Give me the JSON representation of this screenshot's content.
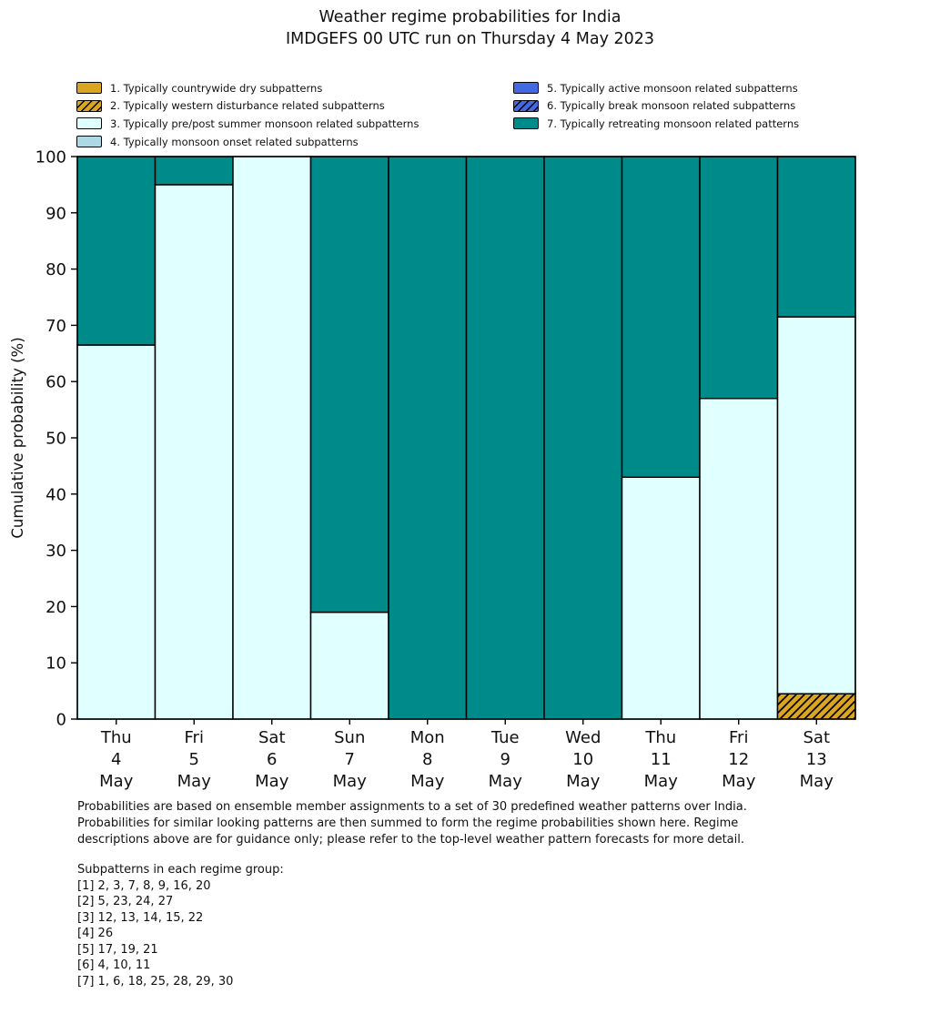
{
  "title": {
    "line1": "Weather regime probabilities for India",
    "line2": "IMDGEFS 00 UTC run on Thursday 4 May 2023"
  },
  "legend": {
    "items": [
      {
        "label": "1. Typically countrywide dry subpatterns",
        "color": "#daa520",
        "hatch": false,
        "column": 0
      },
      {
        "label": "2. Typically western disturbance related subpatterns",
        "color": "#daa520",
        "hatch": true,
        "column": 0
      },
      {
        "label": "3. Typically pre/post summer monsoon related subpatterns",
        "color": "#e0ffff",
        "hatch": false,
        "column": 0
      },
      {
        "label": "4. Typically monsoon onset related subpatterns",
        "color": "#add8e6",
        "hatch": false,
        "column": 0
      },
      {
        "label": "5. Typically active monsoon related subpatterns",
        "color": "#4169e1",
        "hatch": false,
        "column": 1
      },
      {
        "label": "6. Typically break monsoon related subpatterns",
        "color": "#4169e1",
        "hatch": true,
        "column": 1
      },
      {
        "label": "7. Typically retreating monsoon related patterns",
        "color": "#008b8b",
        "hatch": false,
        "column": 1
      }
    ]
  },
  "chart_data": {
    "type": "bar",
    "stacked": true,
    "title": "Weather regime probabilities for India",
    "xlabel": "",
    "ylabel": "Cumulative probability (%)",
    "ylim": [
      0,
      100
    ],
    "ytick_step": 10,
    "grid": false,
    "legend_position": "upper area, two columns",
    "categories": [
      {
        "day": "Thu",
        "date": "4",
        "month": "May"
      },
      {
        "day": "Fri",
        "date": "5",
        "month": "May"
      },
      {
        "day": "Sat",
        "date": "6",
        "month": "May"
      },
      {
        "day": "Sun",
        "date": "7",
        "month": "May"
      },
      {
        "day": "Mon",
        "date": "8",
        "month": "May"
      },
      {
        "day": "Tue",
        "date": "9",
        "month": "May"
      },
      {
        "day": "Wed",
        "date": "10",
        "month": "May"
      },
      {
        "day": "Thu",
        "date": "11",
        "month": "May"
      },
      {
        "day": "Fri",
        "date": "12",
        "month": "May"
      },
      {
        "day": "Sat",
        "date": "13",
        "month": "May"
      }
    ],
    "series": [
      {
        "name": "1. Typically countrywide dry subpatterns",
        "color": "#daa520",
        "hatch": false,
        "values": [
          0,
          0,
          0,
          0,
          0,
          0,
          0,
          0,
          0,
          0
        ]
      },
      {
        "name": "2. Typically western disturbance related subpatterns",
        "color": "#daa520",
        "hatch": true,
        "values": [
          0,
          0,
          0,
          0,
          0,
          0,
          0,
          0,
          0,
          4.5
        ]
      },
      {
        "name": "3. Typically pre/post summer monsoon related subpatterns",
        "color": "#e0ffff",
        "hatch": false,
        "values": [
          66.5,
          95,
          100,
          19,
          0,
          0,
          0,
          43,
          57,
          67
        ]
      },
      {
        "name": "4. Typically monsoon onset related subpatterns",
        "color": "#add8e6",
        "hatch": false,
        "values": [
          0,
          0,
          0,
          0,
          0,
          0,
          0,
          0,
          0,
          0
        ]
      },
      {
        "name": "5. Typically active monsoon related subpatterns",
        "color": "#4169e1",
        "hatch": false,
        "values": [
          0,
          0,
          0,
          0,
          0,
          0,
          0,
          0,
          0,
          0
        ]
      },
      {
        "name": "6. Typically break monsoon related subpatterns",
        "color": "#4169e1",
        "hatch": true,
        "values": [
          0,
          0,
          0,
          0,
          0,
          0,
          0,
          0,
          0,
          0
        ]
      },
      {
        "name": "7. Typically retreating monsoon related patterns",
        "color": "#008b8b",
        "hatch": false,
        "values": [
          33.5,
          5,
          0,
          81,
          100,
          100,
          100,
          57,
          43,
          28.5
        ]
      }
    ]
  },
  "footer": {
    "paragraph": "Probabilities are based on ensemble member assignments to a set of 30 predefined weather patterns over India.\nProbabilities for similar looking patterns are then summed to form the regime probabilities shown here. Regime\ndescriptions above are for guidance only; please refer to the top-level weather pattern forecasts for more detail.",
    "subpatterns": "Subpatterns in each regime group:\n[1] 2, 3, 7, 8, 9, 16, 20\n[2] 5, 23, 24, 27\n[3] 12, 13, 14, 15, 22\n[4] 26\n[5] 17, 19, 21\n[6] 4, 10, 11\n[7] 1, 6, 18, 25, 28, 29, 30"
  }
}
